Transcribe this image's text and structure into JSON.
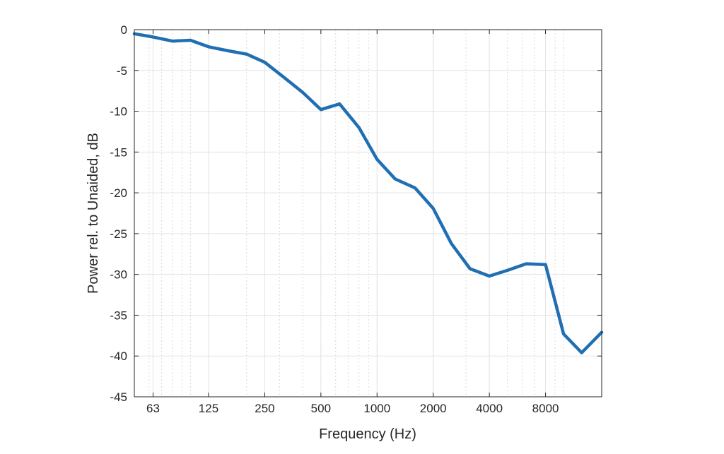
{
  "chart_data": {
    "type": "line",
    "title": "",
    "xlabel": "Frequency (Hz)",
    "ylabel": "Power rel. to Unaided, dB",
    "x_scale": "log2",
    "xlim": [
      50,
      16000
    ],
    "ylim": [
      -45,
      0
    ],
    "grid": true,
    "line_color": "#1f6fb2",
    "x_ticks": [
      63,
      125,
      250,
      500,
      1000,
      2000,
      4000,
      8000
    ],
    "x_tick_labels": [
      "63",
      "125",
      "250",
      "500",
      "1000",
      "2000",
      "4000",
      "8000"
    ],
    "y_ticks": [
      0,
      -5,
      -10,
      -15,
      -20,
      -25,
      -30,
      -35,
      -40,
      -45
    ],
    "y_tick_labels": [
      "0",
      "-5",
      "-10",
      "-15",
      "-20",
      "-25",
      "-30",
      "-35",
      "-40",
      "-45"
    ],
    "series": [
      {
        "x": [
          50,
          63,
          80,
          100,
          125,
          160,
          200,
          250,
          315,
          400,
          500,
          630,
          800,
          1000,
          1250,
          1600,
          2000,
          2500,
          3150,
          4000,
          5000,
          6300,
          8000,
          10000,
          12500,
          16000
        ],
        "y": [
          -0.5,
          -0.9,
          -1.4,
          -1.3,
          -2.1,
          -2.6,
          -3.0,
          -4.0,
          -5.8,
          -7.7,
          -9.8,
          -9.1,
          -12.0,
          -15.9,
          -18.3,
          -19.4,
          -21.9,
          -26.2,
          -29.3,
          -30.2,
          -29.5,
          -28.7,
          -28.8,
          -37.3,
          -39.6,
          -37.1
        ]
      }
    ]
  }
}
